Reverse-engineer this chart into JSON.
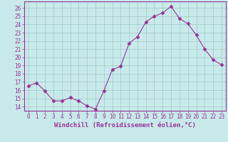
{
  "x": [
    0,
    1,
    2,
    3,
    4,
    5,
    6,
    7,
    8,
    9,
    10,
    11,
    12,
    13,
    14,
    15,
    16,
    17,
    18,
    19,
    20,
    21,
    22,
    23
  ],
  "y": [
    16.5,
    16.9,
    15.9,
    14.7,
    14.7,
    15.1,
    14.7,
    14.1,
    13.7,
    15.9,
    18.5,
    18.9,
    21.7,
    22.5,
    24.3,
    25.0,
    25.4,
    26.2,
    24.7,
    24.1,
    22.7,
    21.0,
    19.7,
    19.1
  ],
  "line_color": "#993399",
  "marker": "D",
  "marker_size": 2.5,
  "bg_color": "#c8eaea",
  "plot_bg_color": "#c8eaea",
  "grid_color": "#a0c8c8",
  "axis_color": "#993399",
  "spine_color": "#993399",
  "xlabel": "Windchill (Refroidissement éolien,°C)",
  "ylim": [
    13.5,
    26.8
  ],
  "xlim": [
    -0.5,
    23.5
  ],
  "yticks": [
    14,
    15,
    16,
    17,
    18,
    19,
    20,
    21,
    22,
    23,
    24,
    25,
    26
  ],
  "xtick_labels": [
    "0",
    "1",
    "2",
    "3",
    "4",
    "5",
    "6",
    "7",
    "8",
    "9",
    "10",
    "11",
    "12",
    "13",
    "14",
    "15",
    "16",
    "17",
    "18",
    "19",
    "20",
    "21",
    "22",
    "23"
  ],
  "tick_fontsize": 5.5,
  "label_fontsize": 6.5,
  "linewidth": 0.8
}
